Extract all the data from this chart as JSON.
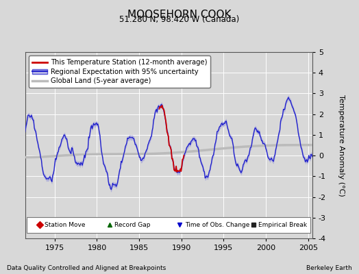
{
  "title": "MOOSEHORN COOK",
  "subtitle": "51.280 N, 98.420 W (Canada)",
  "ylabel": "Temperature Anomaly (°C)",
  "ylim": [
    -4,
    5
  ],
  "yticks": [
    -4,
    -3,
    -2,
    -1,
    0,
    1,
    2,
    3,
    4,
    5
  ],
  "xticks": [
    1975,
    1980,
    1985,
    1990,
    1995,
    2000,
    2005
  ],
  "xmin": 1971.5,
  "xmax": 2005.5,
  "bg_color": "#d8d8d8",
  "plot_bg_color": "#d8d8d8",
  "regional_color": "#2222cc",
  "regional_fill_color": "#9999dd",
  "station_color": "#cc0000",
  "global_color": "#bbbbbb",
  "legend_items": [
    "This Temperature Station (12-month average)",
    "Regional Expectation with 95% uncertainty",
    "Global Land (5-year average)"
  ],
  "bottom_legend": [
    {
      "marker": "D",
      "color": "#cc0000",
      "label": "Station Move"
    },
    {
      "marker": "^",
      "color": "#006600",
      "label": "Record Gap"
    },
    {
      "marker": "v",
      "color": "#0000cc",
      "label": "Time of Obs. Change"
    },
    {
      "marker": "s",
      "color": "#222222",
      "label": "Empirical Break"
    }
  ],
  "footer_left": "Data Quality Controlled and Aligned at Breakpoints",
  "footer_right": "Berkeley Earth"
}
